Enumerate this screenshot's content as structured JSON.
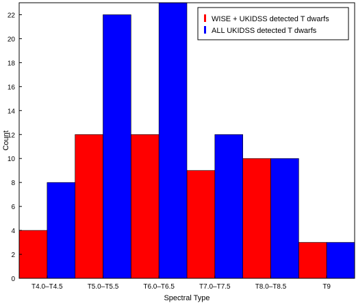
{
  "chart_data": {
    "type": "bar",
    "title": "",
    "xlabel": "Spectral Type",
    "ylabel": "Count",
    "categories": [
      "T4.0–T4.5",
      "T5.0–T5.5",
      "T6.0–T6.5",
      "T7.0–T7.5",
      "T8.0–T8.5",
      "T9"
    ],
    "series": [
      {
        "name": "WISE + UKIDSS detected T dwarfs",
        "color": "#ff0000",
        "values": [
          4,
          12,
          12,
          9,
          10,
          3
        ]
      },
      {
        "name": "ALL UKIDSS detected T dwarfs",
        "color": "#0000ff",
        "values": [
          8,
          22,
          23,
          12,
          10,
          3
        ]
      }
    ],
    "ylim": [
      0,
      23
    ],
    "yticks": [
      0,
      2,
      4,
      6,
      8,
      10,
      12,
      14,
      16,
      18,
      20,
      22
    ],
    "grid": false,
    "legend_position": "top-right"
  }
}
